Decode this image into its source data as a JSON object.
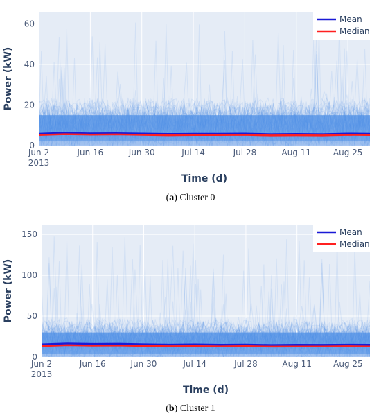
{
  "chart_data": [
    {
      "type": "line",
      "panel": "a",
      "caption_label": "a",
      "caption_text": "Cluster 0",
      "xlabel": "Time (d)",
      "ylabel": "Power (kW)",
      "xlim": [
        "2013-06-02",
        "2013-08-31"
      ],
      "ylim": [
        0,
        66
      ],
      "xticks": [
        "2013-06-02",
        "2013-06-16",
        "2013-06-30",
        "2013-07-14",
        "2013-07-28",
        "2013-08-11",
        "2013-08-25"
      ],
      "xtick_labels": [
        "Jun 2",
        "Jun 16",
        "Jun 30",
        "Jul 14",
        "Jul 28",
        "Aug 11",
        "Aug 25"
      ],
      "xtick_sublabel": "2013",
      "yticks": [
        0,
        20,
        40,
        60
      ],
      "grid": true,
      "legend_position": "top-right",
      "band": {
        "color": "#4d8fe6",
        "typical_upper": 20,
        "typical_lower": 2,
        "peak_max": 61
      },
      "series": [
        {
          "name": "Mean",
          "color": "#1a1ad6",
          "x": [
            "2013-06-02",
            "2013-06-09",
            "2013-06-16",
            "2013-06-23",
            "2013-06-30",
            "2013-07-07",
            "2013-07-14",
            "2013-07-21",
            "2013-07-28",
            "2013-08-04",
            "2013-08-11",
            "2013-08-18",
            "2013-08-25",
            "2013-08-31"
          ],
          "values": [
            5.8,
            6.3,
            6.0,
            6.1,
            5.9,
            5.7,
            5.8,
            5.8,
            5.9,
            5.6,
            5.7,
            5.6,
            5.9,
            5.8
          ]
        },
        {
          "name": "Median",
          "color": "#ff2020",
          "x": [
            "2013-06-02",
            "2013-06-09",
            "2013-06-16",
            "2013-06-23",
            "2013-06-30",
            "2013-07-07",
            "2013-07-14",
            "2013-07-21",
            "2013-07-28",
            "2013-08-04",
            "2013-08-11",
            "2013-08-18",
            "2013-08-25",
            "2013-08-31"
          ],
          "values": [
            5.2,
            5.6,
            5.4,
            5.5,
            5.3,
            5.1,
            5.2,
            5.2,
            5.3,
            5.0,
            5.1,
            5.0,
            5.3,
            5.2
          ]
        }
      ]
    },
    {
      "type": "line",
      "panel": "b",
      "caption_label": "b",
      "caption_text": "Cluster 1",
      "xlabel": "Time (d)",
      "ylabel": "Power (kW)",
      "xlim": [
        "2013-06-02",
        "2013-08-31"
      ],
      "ylim": [
        0,
        162
      ],
      "xticks": [
        "2013-06-02",
        "2013-06-16",
        "2013-06-30",
        "2013-07-14",
        "2013-07-28",
        "2013-08-11",
        "2013-08-25"
      ],
      "xtick_labels": [
        "Jun 2",
        "Jun 16",
        "Jun 30",
        "Jul 14",
        "Jul 28",
        "Aug 11",
        "Aug 25"
      ],
      "xtick_sublabel": "2013",
      "yticks": [
        0,
        50,
        100,
        150
      ],
      "grid": true,
      "legend_position": "top-right",
      "band": {
        "color": "#4d8fe6",
        "typical_upper": 40,
        "typical_lower": 4,
        "peak_max": 148
      },
      "series": [
        {
          "name": "Mean",
          "color": "#1a1ad6",
          "x": [
            "2013-06-02",
            "2013-06-09",
            "2013-06-16",
            "2013-06-23",
            "2013-06-30",
            "2013-07-07",
            "2013-07-14",
            "2013-07-21",
            "2013-07-28",
            "2013-08-04",
            "2013-08-11",
            "2013-08-18",
            "2013-08-25",
            "2013-08-31"
          ],
          "values": [
            15.5,
            16.5,
            16.0,
            16.2,
            15.6,
            15.2,
            15.4,
            15.1,
            15.3,
            14.8,
            15.0,
            14.9,
            15.2,
            15.0
          ]
        },
        {
          "name": "Median",
          "color": "#ff2020",
          "x": [
            "2013-06-02",
            "2013-06-09",
            "2013-06-16",
            "2013-06-23",
            "2013-06-30",
            "2013-07-07",
            "2013-07-14",
            "2013-07-21",
            "2013-07-28",
            "2013-08-04",
            "2013-08-11",
            "2013-08-18",
            "2013-08-25",
            "2013-08-31"
          ],
          "values": [
            13.5,
            14.5,
            14.0,
            14.2,
            13.6,
            13.2,
            13.4,
            13.1,
            13.3,
            12.8,
            13.0,
            12.9,
            13.2,
            13.0
          ]
        }
      ]
    }
  ]
}
